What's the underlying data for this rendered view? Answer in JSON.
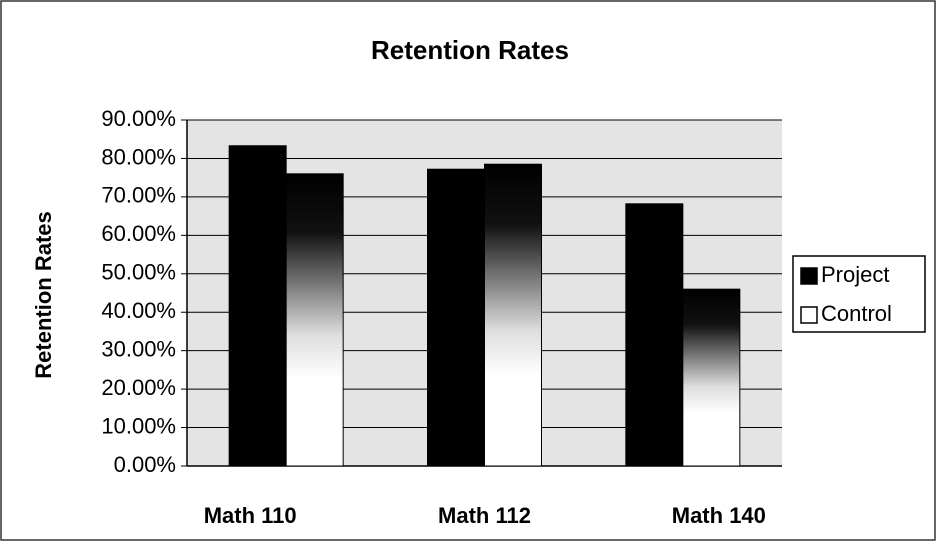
{
  "chart_data": {
    "type": "bar",
    "title": "Retention Rates",
    "y_label": "Retention Rates",
    "categories": [
      "Math 110",
      "Math 112",
      "Math 140"
    ],
    "series": [
      {
        "name": "Project",
        "color": "#000000",
        "values": [
          83.3,
          77.2,
          68.2
        ]
      },
      {
        "name": "Control",
        "color": "#ffffff",
        "values": [
          76,
          78.5,
          46
        ]
      }
    ],
    "ylim": [
      0,
      90
    ],
    "yticks": [
      {
        "value": 0,
        "label": "0.00%"
      },
      {
        "value": 10,
        "label": "10.00%"
      },
      {
        "value": 20,
        "label": "20.00%"
      },
      {
        "value": 30,
        "label": "30.00%"
      },
      {
        "value": 40,
        "label": "40.00%"
      },
      {
        "value": 50,
        "label": "50.00%"
      },
      {
        "value": 60,
        "label": "60.00%"
      },
      {
        "value": 70,
        "label": "70.00%"
      },
      {
        "value": 80,
        "label": "80.00%"
      },
      {
        "value": 90,
        "label": "90.00%"
      }
    ],
    "grid": true,
    "legend": "right"
  }
}
